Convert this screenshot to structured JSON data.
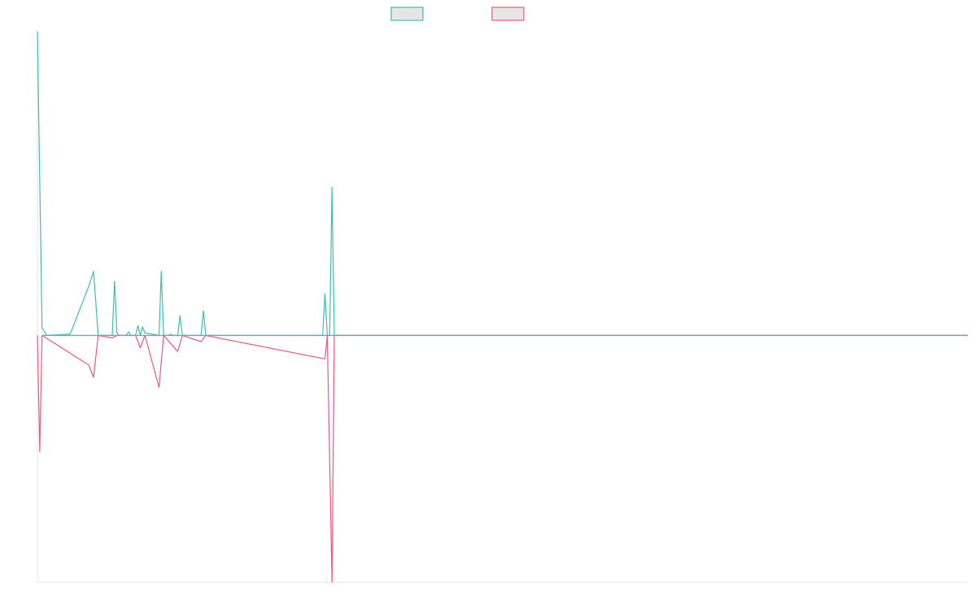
{
  "chart_data": {
    "type": "line",
    "title": "",
    "xlabel": "",
    "ylabel": "",
    "x_count": 200,
    "ylim": [
      -1.0,
      1.24
    ],
    "grid": false,
    "legend": "top-center",
    "colors": {
      "series_a": "#3cbfb0",
      "series_b": "#f0587e",
      "zero_line": "#7f9fb6",
      "axis": "#e6e6e6",
      "legend_fill": "#e6e6e6"
    },
    "series": [
      {
        "color_key": "series_a",
        "points": [
          [
            0,
            1.23
          ],
          [
            1,
            0.03
          ],
          [
            2,
            0.0
          ],
          [
            7,
            0.005
          ],
          [
            11,
            0.2
          ],
          [
            12,
            0.26
          ],
          [
            13,
            0.0
          ],
          [
            16,
            0.0
          ],
          [
            16.5,
            0.22
          ],
          [
            17,
            0.01
          ],
          [
            17.5,
            0.0
          ],
          [
            19,
            0.0
          ],
          [
            19.5,
            0.015
          ],
          [
            20,
            0.0
          ],
          [
            21,
            0.0
          ],
          [
            21.5,
            0.04
          ],
          [
            22,
            0.0
          ],
          [
            22.5,
            0.035
          ],
          [
            23,
            0.01
          ],
          [
            26,
            0.0
          ],
          [
            26.5,
            0.26
          ],
          [
            27,
            0.0
          ],
          [
            28,
            0.0
          ],
          [
            28.5,
            0.005
          ],
          [
            29,
            0.0
          ],
          [
            30,
            0.0
          ],
          [
            30.5,
            0.08
          ],
          [
            31,
            0.0
          ],
          [
            35,
            0.0
          ],
          [
            35.5,
            0.1
          ],
          [
            36,
            0.0
          ],
          [
            61,
            0.0
          ],
          [
            61.5,
            0.17
          ],
          [
            62,
            0.0
          ],
          [
            62.5,
            0.0
          ],
          [
            63,
            0.6
          ],
          [
            63.5,
            0.0
          ],
          [
            199,
            0.0
          ]
        ]
      },
      {
        "color_key": "series_b",
        "points": [
          [
            0,
            0.0
          ],
          [
            0.5,
            -0.47
          ],
          [
            1,
            0.0
          ],
          [
            11,
            -0.12
          ],
          [
            12,
            -0.17
          ],
          [
            13,
            0.0
          ],
          [
            16,
            -0.01
          ],
          [
            17,
            0.0
          ],
          [
            21,
            0.0
          ],
          [
            22,
            -0.05
          ],
          [
            23,
            0.0
          ],
          [
            26,
            -0.21
          ],
          [
            27,
            0.0
          ],
          [
            30,
            -0.065
          ],
          [
            31,
            0.0
          ],
          [
            35,
            -0.025
          ],
          [
            36,
            0.0
          ],
          [
            61.5,
            -0.095
          ],
          [
            62,
            0.0
          ],
          [
            63,
            -1.0
          ],
          [
            63.5,
            0.0
          ],
          [
            199,
            0.0
          ]
        ]
      }
    ]
  }
}
